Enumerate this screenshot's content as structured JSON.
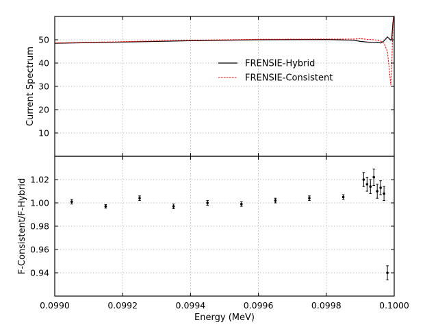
{
  "chart_data": [
    {
      "type": "line",
      "panel": "top",
      "xlabel": "",
      "ylabel": "Current Spectrum",
      "xlim": [
        0.099,
        0.1
      ],
      "ylim": [
        0,
        60
      ],
      "yticks": [
        10,
        20,
        30,
        40,
        50
      ],
      "grid": true,
      "legend": "center-right",
      "series": [
        {
          "name": "FRENSIE-Hybrid",
          "color": "#000000",
          "style": "solid",
          "x": [
            0.099,
            0.0992,
            0.0994,
            0.0996,
            0.0998,
            0.09988,
            0.0999,
            0.09992,
            0.09994,
            0.09995,
            0.09996,
            0.09997,
            0.09998,
            0.099985,
            0.09999,
            0.099993,
            0.099996,
            0.1
          ],
          "y": [
            48.5,
            49.0,
            49.6,
            50.0,
            50.1,
            49.8,
            49.3,
            49.0,
            48.8,
            48.9,
            48.6,
            49.5,
            51.2,
            50.5,
            49.8,
            51.0,
            57.0,
            62.0
          ]
        },
        {
          "name": "FRENSIE-Consistent",
          "color": "#ff0000",
          "style": "dashed",
          "x": [
            0.099,
            0.0992,
            0.0994,
            0.0996,
            0.0998,
            0.09988,
            0.0999,
            0.09992,
            0.09994,
            0.09995,
            0.09996,
            0.09997,
            0.09998,
            0.099985,
            0.09999,
            0.099993,
            0.099996,
            0.1
          ],
          "y": [
            48.6,
            49.2,
            49.8,
            50.2,
            50.3,
            50.3,
            50.5,
            50.2,
            50.0,
            49.8,
            49.4,
            48.5,
            45.0,
            38.0,
            30.5,
            40.0,
            55.0,
            62.0
          ]
        }
      ]
    },
    {
      "type": "scatter",
      "panel": "bottom",
      "xlabel": "Energy (MeV)",
      "ylabel": "F-Consistent/F-Hybrid",
      "xlim": [
        0.099,
        0.1
      ],
      "ylim": [
        0.92,
        1.04
      ],
      "xticks": [
        0.099,
        0.0992,
        0.0994,
        0.0996,
        0.0998,
        0.1
      ],
      "xtick_labels": [
        "0.0990",
        "0.0992",
        "0.0994",
        "0.0996",
        "0.0998",
        "0.1000"
      ],
      "yticks": [
        0.94,
        0.96,
        0.98,
        1.0,
        1.02
      ],
      "ytick_labels": [
        "0.94",
        "0.96",
        "0.98",
        "1.00",
        "1.02"
      ],
      "grid": true,
      "series": [
        {
          "color": "#000000",
          "x": [
            0.09905,
            0.09915,
            0.09925,
            0.09935,
            0.09945,
            0.09955,
            0.09965,
            0.09975,
            0.09985,
            0.09991,
            0.09992,
            0.09993,
            0.09994,
            0.09995,
            0.09996,
            0.09997,
            0.09998
          ],
          "y": [
            1.001,
            0.997,
            1.004,
            0.997,
            1.0,
            0.999,
            1.002,
            1.004,
            1.005,
            1.02,
            1.016,
            1.014,
            1.022,
            1.01,
            1.013,
            1.008,
            0.94
          ],
          "err": [
            0.002,
            0.0015,
            0.002,
            0.002,
            0.002,
            0.002,
            0.002,
            0.002,
            0.002,
            0.006,
            0.006,
            0.006,
            0.007,
            0.006,
            0.006,
            0.006,
            0.006
          ]
        }
      ]
    }
  ]
}
